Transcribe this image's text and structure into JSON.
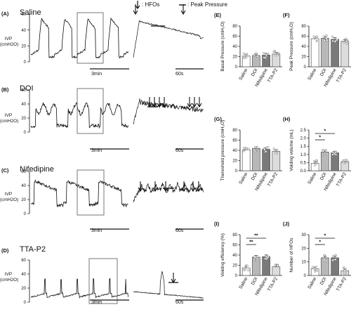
{
  "legend": {
    "hfo_text": ": HFOs",
    "peak_text": ": Peak Pressure"
  },
  "traces": [
    {
      "panel": "(A)",
      "title": "Saline",
      "ylabel_top": "IVP",
      "ylabel_bottom": "(cmH2O)",
      "ticks": [
        "60",
        "40",
        "20",
        "0"
      ],
      "scale_long": "3min",
      "scale_short": "60s"
    },
    {
      "panel": "(B)",
      "title": "DOI",
      "ylabel_top": "IVP",
      "ylabel_bottom": "(cmH2O)",
      "ticks": [
        "60",
        "40",
        "20",
        "0"
      ],
      "scale_long": "3min",
      "scale_short": "60s"
    },
    {
      "panel": "(C)",
      "title": "Nifedipine",
      "ylabel_top": "IVP",
      "ylabel_bottom": "(cmH2O)",
      "ticks": [
        "60",
        "40",
        "20",
        "0"
      ],
      "scale_long": "3min",
      "scale_short": "60s"
    },
    {
      "panel": "(D)",
      "title": "TTA-P2",
      "ylabel_top": "IVP",
      "ylabel_bottom": "(cmH2O)",
      "ticks": [
        "60",
        "40",
        "20",
        "0"
      ],
      "scale_long": "3min",
      "scale_short": "60s"
    }
  ],
  "chart_data": [
    {
      "panel": "(E)",
      "type": "bar",
      "ylabel": "Basal Pressure (cmH₂O)",
      "ylim": [
        0,
        80
      ],
      "yticks": [
        "80",
        "60",
        "40",
        "20",
        "0"
      ],
      "categories": [
        "Saline",
        "DOI",
        "Nifedipine",
        "TTA-P2"
      ],
      "values": [
        21,
        22,
        23,
        25
      ],
      "sig": []
    },
    {
      "panel": "(F)",
      "type": "bar",
      "ylabel": "Peak Pressure (cmH₂O)",
      "ylim": [
        0,
        80
      ],
      "yticks": [
        "80",
        "60",
        "40",
        "20",
        "0"
      ],
      "categories": [
        "Saline",
        "DOI",
        "Nifedipine",
        "TTA-P2"
      ],
      "values": [
        55,
        56,
        54,
        50
      ],
      "sig": []
    },
    {
      "panel": "(G)",
      "type": "bar",
      "ylabel": "Thereshold pressure (cmH₂O)",
      "ylim": [
        0,
        80
      ],
      "yticks": [
        "80",
        "60",
        "40",
        "20",
        "0"
      ],
      "categories": [
        "Saline",
        "DOI",
        "Nifedipine",
        "TTA-P2"
      ],
      "values": [
        41,
        44,
        42,
        38
      ],
      "sig": []
    },
    {
      "panel": "(H)",
      "type": "bar",
      "ylabel": "Voiding volume (mL)",
      "ylim": [
        0,
        2.5
      ],
      "yticks": [
        "2.5",
        "2.0",
        "1.5",
        "1.0",
        "0.5",
        "0.0"
      ],
      "categories": [
        "Saline",
        "DOI",
        "Nifedipine",
        "TTA-P2"
      ],
      "values": [
        0.45,
        1.15,
        1.1,
        0.55
      ],
      "sig": [
        {
          "from": 0,
          "to": 1,
          "label": "*",
          "level": 0
        },
        {
          "from": 0,
          "to": 2,
          "label": "*",
          "level": 1
        }
      ]
    },
    {
      "panel": "(I)",
      "type": "bar",
      "ylabel": "Voiding efficiency (%)",
      "ylim": [
        0,
        80
      ],
      "yticks": [
        "80",
        "60",
        "40",
        "20",
        "0"
      ],
      "categories": [
        "Saline",
        "DOI",
        "Nifedipine",
        "TTA-P2"
      ],
      "values": [
        15,
        36,
        37,
        17
      ],
      "sig": [
        {
          "from": 0,
          "to": 1,
          "label": "**",
          "level": 0
        },
        {
          "from": 0,
          "to": 2,
          "label": "**",
          "level": 1
        }
      ]
    },
    {
      "panel": "(J)",
      "type": "bar",
      "ylabel": "Number of HFOs",
      "ylim": [
        0,
        30
      ],
      "yticks": [
        "30",
        "20",
        "10",
        "0"
      ],
      "categories": [
        "Saline",
        "DOI",
        "Nifedipine",
        "TTA-P2"
      ],
      "values": [
        5,
        13,
        13,
        3.5
      ],
      "sig": [
        {
          "from": 0,
          "to": 1,
          "label": "*",
          "level": 0
        },
        {
          "from": 0,
          "to": 2,
          "label": "*",
          "level": 1
        }
      ]
    }
  ],
  "colors": {
    "bar_fills": [
      "#ffffff",
      "#b8b8b8",
      "#7a7a7a",
      "#dcdcdc"
    ],
    "trace": "#111111"
  }
}
